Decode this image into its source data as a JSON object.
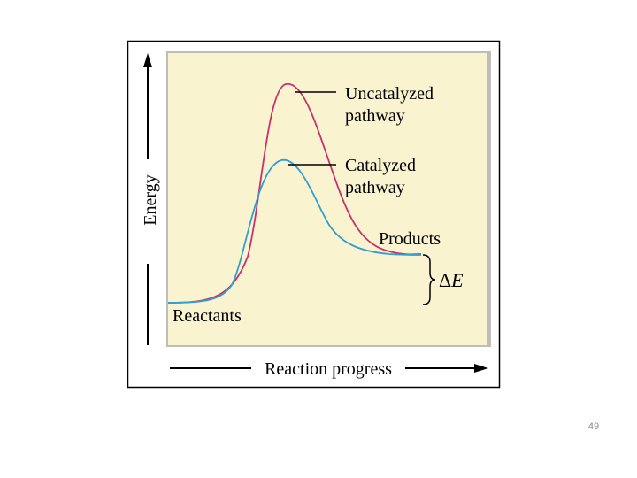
{
  "diagram": {
    "y_axis_label": "Energy",
    "x_axis_label": "Reaction progress",
    "labels": {
      "uncatalyzed_line1": "Uncatalyzed",
      "uncatalyzed_line2": "pathway",
      "catalyzed_line1": "Catalyzed",
      "catalyzed_line2": "pathway",
      "products": "Products",
      "reactants": "Reactants",
      "delta_symbol": "Δ",
      "delta_var": "E"
    },
    "colors": {
      "plot_background": "#faf3cf",
      "uncatalyzed_curve": "#c8326a",
      "catalyzed_curve": "#2f9fd3",
      "frame": "#000000",
      "inner_shadow": "#bdbdbd"
    }
  },
  "slide": {
    "page_number": "49"
  }
}
